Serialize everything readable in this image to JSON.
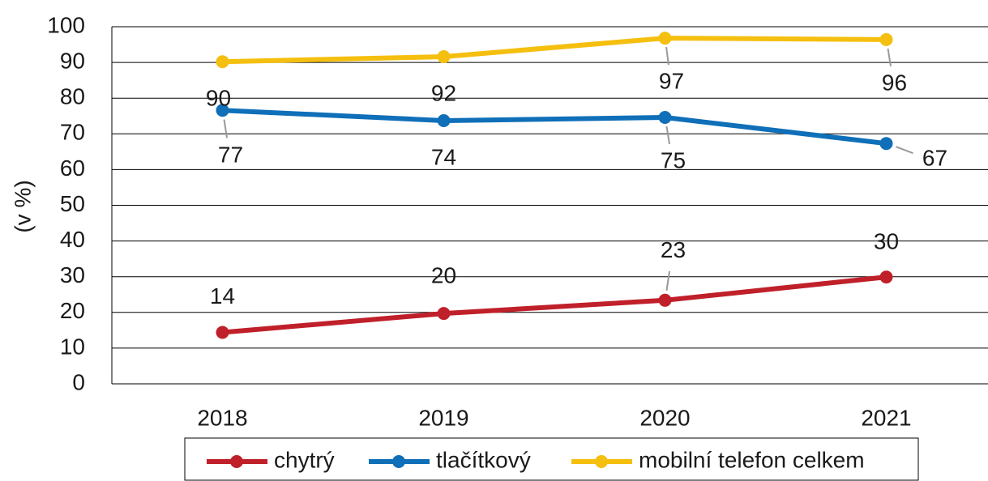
{
  "chart_data": {
    "type": "line",
    "y_label": "(v %)",
    "categories": [
      "2018",
      "2019",
      "2020",
      "2021"
    ],
    "series": [
      {
        "name": "chytrý",
        "color": "#c0202a",
        "values": [
          14.4,
          19.7,
          23.4,
          29.9
        ],
        "value_labels": [
          "14",
          "20",
          "23",
          "30"
        ]
      },
      {
        "name": "tlačítkový",
        "color": "#0f6fb8",
        "values": [
          76.6,
          73.7,
          74.6,
          67.3
        ],
        "value_labels": [
          "77",
          "74",
          "75",
          "67"
        ]
      },
      {
        "name": "mobilní telefon celkem",
        "color": "#f5bf0f",
        "values": [
          90.2,
          91.6,
          96.8,
          96.4
        ],
        "value_labels": [
          "90",
          "92",
          "97",
          "96"
        ]
      }
    ],
    "ylim": [
      0,
      100
    ],
    "yticks": [
      0,
      10,
      20,
      30,
      40,
      50,
      60,
      70,
      80,
      90,
      100
    ],
    "grid": true,
    "legend": "bottom"
  }
}
